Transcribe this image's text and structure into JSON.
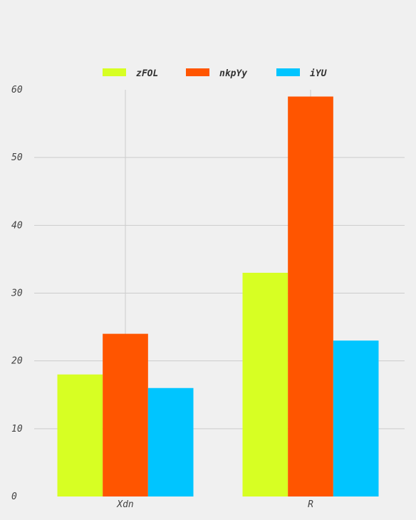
{
  "chart_data": {
    "type": "bar",
    "categories": [
      "Xdn",
      "R"
    ],
    "series": [
      {
        "name": "zFOL",
        "values": [
          18,
          33
        ],
        "color": "#d7ff23"
      },
      {
        "name": "nkpYy",
        "values": [
          24,
          59
        ],
        "color": "#ff5500"
      },
      {
        "name": "iYU",
        "values": [
          16,
          23
        ],
        "color": "#00c5ff"
      }
    ],
    "y_ticks": [
      "0",
      "10",
      "20",
      "30",
      "40",
      "50",
      "60"
    ],
    "ylim": [
      0,
      60
    ],
    "grid": true,
    "legend_position": "top",
    "background": "#f0f0f0",
    "grid_color": "#cccccc"
  }
}
